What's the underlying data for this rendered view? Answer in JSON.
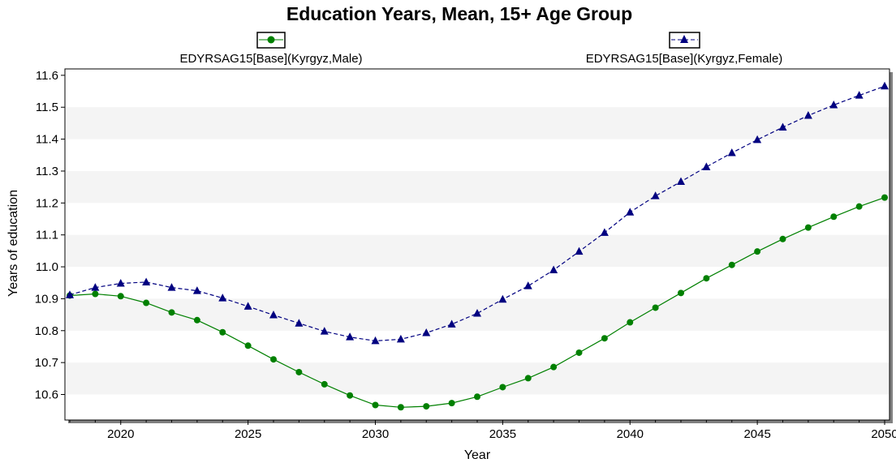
{
  "chart_data": {
    "type": "line",
    "title": "Education Years, Mean, 15+ Age Group",
    "xlabel": "Year",
    "ylabel": "Years of education",
    "xlim": [
      2018,
      2050
    ],
    "ylim": [
      10.52,
      11.62
    ],
    "x_ticks": [
      2020,
      2025,
      2030,
      2035,
      2040,
      2045,
      2050
    ],
    "y_ticks": [
      10.6,
      10.7,
      10.8,
      10.9,
      11.0,
      11.1,
      11.2,
      11.3,
      11.4,
      11.5,
      11.6
    ],
    "y_tick_labels": [
      "10.6",
      "10.7",
      "10.8",
      "10.9",
      "11.0",
      "11.1",
      "11.2",
      "11.3",
      "11.4",
      "11.5",
      "11.6"
    ],
    "grid": "alternating-horizontal-bands",
    "legend_position": "top",
    "x": [
      2018,
      2019,
      2020,
      2021,
      2022,
      2023,
      2024,
      2025,
      2026,
      2027,
      2028,
      2029,
      2030,
      2031,
      2032,
      2033,
      2034,
      2035,
      2036,
      2037,
      2038,
      2039,
      2040,
      2041,
      2042,
      2043,
      2044,
      2045,
      2046,
      2047,
      2048,
      2049,
      2050
    ],
    "series": [
      {
        "name": "EDYRSAG15[Base](Kyrgyz,Male)",
        "color": "#008000",
        "marker": "circle",
        "line_style": "solid",
        "values": [
          10.91,
          10.915,
          10.908,
          10.887,
          10.857,
          10.833,
          10.795,
          10.753,
          10.71,
          10.67,
          10.632,
          10.597,
          10.567,
          10.56,
          10.563,
          10.573,
          10.593,
          10.623,
          10.651,
          10.686,
          10.731,
          10.776,
          10.826,
          10.872,
          10.918,
          10.964,
          11.006,
          11.048,
          11.087,
          11.123,
          11.157,
          11.189,
          11.217
        ]
      },
      {
        "name": "EDYRSAG15[Base](Kyrgyz,Female)",
        "color": "#000080",
        "marker": "triangle",
        "line_style": "dashed",
        "values": [
          10.912,
          10.935,
          10.948,
          10.952,
          10.935,
          10.925,
          10.902,
          10.876,
          10.849,
          10.823,
          10.798,
          10.78,
          10.768,
          10.773,
          10.793,
          10.82,
          10.854,
          10.898,
          10.94,
          10.99,
          11.048,
          11.107,
          11.171,
          11.222,
          11.267,
          11.313,
          11.357,
          11.398,
          11.437,
          11.474,
          11.507,
          11.537,
          11.566
        ]
      }
    ]
  }
}
